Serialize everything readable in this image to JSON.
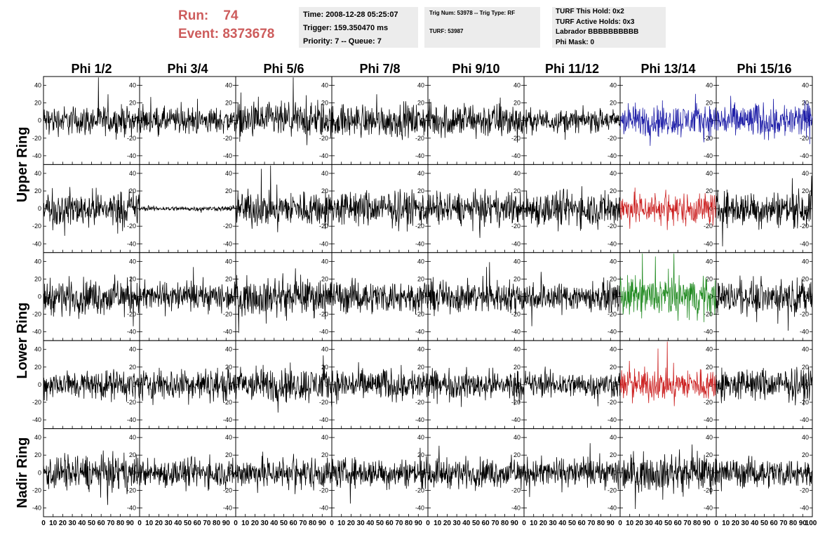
{
  "header": {
    "run_label": "Run:",
    "run_value": "74",
    "event_label": "Event:",
    "event_value": "8373678",
    "run_color": "#cd5c5c",
    "time_box": {
      "time": "Time: 2008-12-28 05:25:07",
      "trigger": "Trigger: 159.350470 ms",
      "priority": "Priority: 7 -- Queue: 7"
    },
    "trig_box": {
      "trig": "Trig Num: 53978 -- Trig Type: RF",
      "turf": "TURF: 53987"
    },
    "turf_box": {
      "this_hold": "TURF This Hold: 0x2",
      "active_holds": "TURF Active Holds: 0x3",
      "labrador": "Labrador BBBBBBBBBB",
      "phi_mask": "Phi Mask: 0"
    }
  },
  "chart_data": {
    "type": "line",
    "columns": [
      "Phi 1/2",
      "Phi 3/4",
      "Phi 5/6",
      "Phi 7/8",
      "Phi 9/10",
      "Phi 11/12",
      "Phi 13/14",
      "Phi 15/16"
    ],
    "row_groups": [
      {
        "label": "Upper Ring",
        "rows": 2
      },
      {
        "label": "Lower Ring",
        "rows": 2
      },
      {
        "label": "Nadir Ring",
        "rows": 1
      }
    ],
    "xlim": [
      0,
      100
    ],
    "ylim": [
      -50,
      50
    ],
    "x_ticks": [
      0,
      10,
      20,
      30,
      40,
      50,
      60,
      70,
      80,
      90
    ],
    "x_last_tick": "100",
    "y_ticks": [
      -40,
      -20,
      0,
      20,
      40
    ],
    "samples_per_trace": 260,
    "colors": {
      "default": "#000000",
      "blue": "#1f1fa8",
      "red": "#cc2222",
      "green": "#228b22"
    },
    "panels": [
      [
        {
          "amp": 9,
          "color": "default"
        },
        {
          "amp": 8,
          "color": "default"
        },
        {
          "amp": 11,
          "color": "default"
        },
        {
          "amp": 10,
          "color": "default"
        },
        {
          "amp": 11,
          "color": "default"
        },
        {
          "amp": 7,
          "color": "default"
        },
        {
          "amp": 10,
          "color": "blue"
        },
        {
          "amp": 11,
          "color": "blue"
        }
      ],
      [
        {
          "amp": 11,
          "color": "default"
        },
        {
          "amp": 1.5,
          "color": "default"
        },
        {
          "amp": 11,
          "color": "default"
        },
        {
          "amp": 11,
          "color": "default"
        },
        {
          "amp": 10,
          "color": "default"
        },
        {
          "amp": 11,
          "color": "default"
        },
        {
          "amp": 10,
          "color": "red"
        },
        {
          "amp": 11,
          "color": "default"
        }
      ],
      [
        {
          "amp": 11,
          "color": "default"
        },
        {
          "amp": 9,
          "color": "default"
        },
        {
          "amp": 11,
          "color": "default"
        },
        {
          "amp": 10,
          "color": "default"
        },
        {
          "amp": 10,
          "color": "default"
        },
        {
          "amp": 9,
          "color": "default"
        },
        {
          "amp": 12,
          "color": "green"
        },
        {
          "amp": 10,
          "color": "default"
        }
      ],
      [
        {
          "amp": 9,
          "color": "default"
        },
        {
          "amp": 10,
          "color": "default"
        },
        {
          "amp": 11,
          "color": "default"
        },
        {
          "amp": 10,
          "color": "default"
        },
        {
          "amp": 9,
          "color": "default"
        },
        {
          "amp": 8,
          "color": "default"
        },
        {
          "amp": 10,
          "color": "red"
        },
        {
          "amp": 10,
          "color": "default"
        }
      ],
      [
        {
          "amp": 11,
          "color": "default"
        },
        {
          "amp": 9,
          "color": "default"
        },
        {
          "amp": 10,
          "color": "default"
        },
        {
          "amp": 9,
          "color": "default"
        },
        {
          "amp": 9,
          "color": "default"
        },
        {
          "amp": 9,
          "color": "default"
        },
        {
          "amp": 11,
          "color": "default"
        },
        {
          "amp": 9,
          "color": "default"
        }
      ]
    ]
  }
}
